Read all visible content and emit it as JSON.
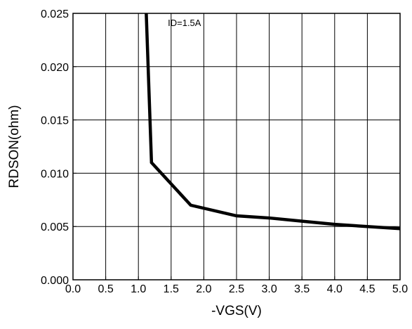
{
  "chart_data": {
    "type": "line",
    "title": "",
    "xlabel": "-VGS(V)",
    "ylabel": "RDSON(ohm)",
    "xlim": [
      0.0,
      5.0
    ],
    "ylim": [
      0.0,
      0.025
    ],
    "x_ticks": [
      "0.0",
      "0.5",
      "1.0",
      "1.5",
      "2.0",
      "2.5",
      "3.0",
      "3.5",
      "4.0",
      "4.5",
      "5.0"
    ],
    "y_ticks": [
      "0.000",
      "0.005",
      "0.010",
      "0.015",
      "0.020",
      "0.025"
    ],
    "grid": true,
    "annotation": "ID=1.5A",
    "series": [
      {
        "x": [
          1.12,
          1.2,
          1.8,
          2.5,
          3.0,
          3.5,
          4.0,
          4.5,
          5.0
        ],
        "y": [
          0.025,
          0.011,
          0.007,
          0.006,
          0.0058,
          0.0055,
          0.0052,
          0.005,
          0.0048
        ]
      }
    ],
    "color": "#000000"
  }
}
